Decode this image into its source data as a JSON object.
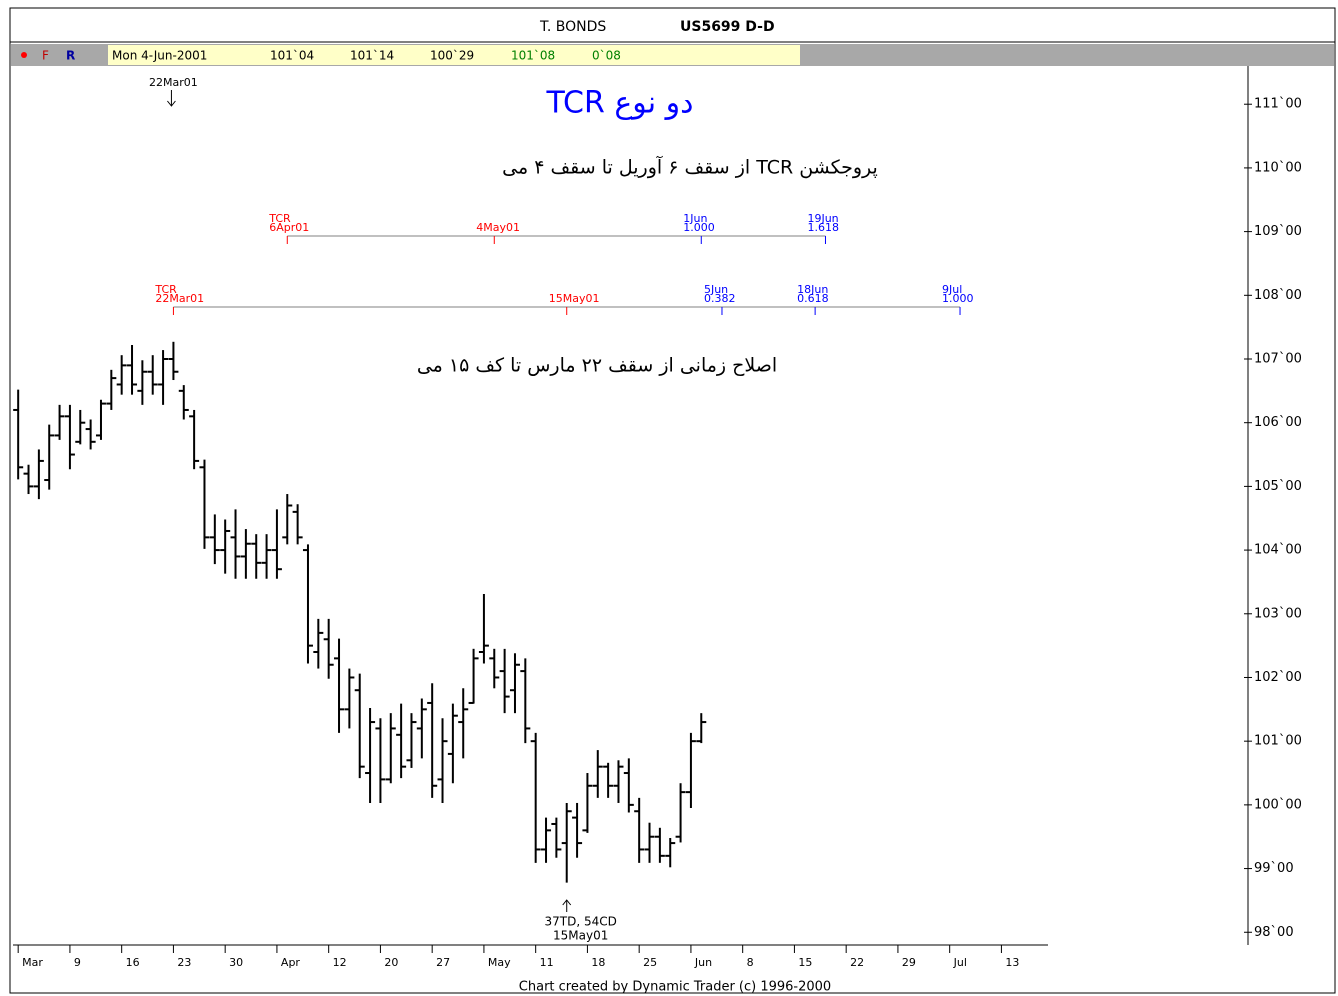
{
  "header": {
    "symbol": "T. BONDS",
    "code": "US5699 D-D"
  },
  "info_bar": {
    "flags": [
      "F",
      "R"
    ],
    "date": "Mon 4-Jun-2001",
    "open": "101`04",
    "high": "101`14",
    "low": "100`29",
    "close": "101`08",
    "change": "0`08"
  },
  "notes": [
    "دو نوع TCR",
    "پروجکشن TCR از سقف ۶ آوریل تا سقف ۴ می",
    "اصلاح زمانی از سقف ۲۲ مارس تا کف ۱۵ می"
  ],
  "footer": "Chart created by Dynamic Trader (c) 1996-2000",
  "chart_data": {
    "type": "ohlc",
    "color": "#000000",
    "x": [
      0,
      1,
      2,
      3,
      4,
      5,
      6,
      7,
      8,
      9,
      10,
      11,
      12,
      13,
      14,
      15,
      16,
      17,
      18,
      19,
      20,
      21,
      22,
      23,
      24,
      25,
      26,
      27,
      28,
      29,
      30,
      31,
      32,
      33,
      34,
      35,
      36,
      37,
      38,
      39,
      40,
      41,
      42,
      43,
      44,
      45,
      46,
      47,
      48,
      49,
      50,
      51,
      52,
      53,
      54,
      55,
      56,
      57,
      58,
      59,
      60,
      61,
      62,
      63,
      64,
      65,
      66
    ],
    "open": [
      106.2,
      105.2,
      105.0,
      105.1,
      105.8,
      106.1,
      105.7,
      105.9,
      105.8,
      106.3,
      106.6,
      106.9,
      106.5,
      106.8,
      106.6,
      107.0,
      106.5,
      106.1,
      105.3,
      104.2,
      104.0,
      104.2,
      103.9,
      104.1,
      103.8,
      104.0,
      104.2,
      104.6,
      104.0,
      102.4,
      102.6,
      102.3,
      101.5,
      101.8,
      100.5,
      101.2,
      100.4,
      101.1,
      100.7,
      101.2,
      101.6,
      100.4,
      100.8,
      101.3,
      101.6,
      102.4,
      102.3,
      102.1,
      101.8,
      102.1,
      101.0,
      99.3,
      99.7,
      99.4,
      99.8,
      99.6,
      100.3,
      100.6,
      100.3,
      100.5,
      99.9,
      99.3,
      99.5,
      99.2,
      99.5,
      100.2,
      101.0
    ],
    "high": [
      106.52,
      105.34,
      105.58,
      105.97,
      106.28,
      106.28,
      106.2,
      106.05,
      106.36,
      106.83,
      107.06,
      107.22,
      106.98,
      107.06,
      107.14,
      107.27,
      106.59,
      106.2,
      105.42,
      104.56,
      104.48,
      104.64,
      104.33,
      104.25,
      104.25,
      104.64,
      104.88,
      104.72,
      104.09,
      102.92,
      102.92,
      102.61,
      102.14,
      102.06,
      101.52,
      101.36,
      101.44,
      101.59,
      101.44,
      101.67,
      101.91,
      101.36,
      101.59,
      101.83,
      102.45,
      103.31,
      102.45,
      102.45,
      102.38,
      102.3,
      101.13,
      99.8,
      99.8,
      100.03,
      100.03,
      100.5,
      100.86,
      100.66,
      100.7,
      100.73,
      100.11,
      99.72,
      99.64,
      99.48,
      100.34,
      101.13,
      101.44
    ],
    "low": [
      105.11,
      104.88,
      104.8,
      104.95,
      105.73,
      105.27,
      105.66,
      105.58,
      105.73,
      106.2,
      106.44,
      106.44,
      106.28,
      106.44,
      106.28,
      106.67,
      106.05,
      105.27,
      104.02,
      103.78,
      103.63,
      103.55,
      103.55,
      103.55,
      103.55,
      103.55,
      104.09,
      104.09,
      102.22,
      102.14,
      101.98,
      101.13,
      101.2,
      100.42,
      100.03,
      100.03,
      100.34,
      100.42,
      100.58,
      100.73,
      100.11,
      100.03,
      100.34,
      100.73,
      101.59,
      102.22,
      101.83,
      101.44,
      101.44,
      100.97,
      99.09,
      99.09,
      99.17,
      98.78,
      99.17,
      99.56,
      100.11,
      100.11,
      100.03,
      99.88,
      99.09,
      99.09,
      99.09,
      99.02,
      99.41,
      99.95,
      100.97
    ],
    "close": [
      105.3,
      105.0,
      105.4,
      105.8,
      106.1,
      105.5,
      106.0,
      105.7,
      106.3,
      106.7,
      106.9,
      106.6,
      106.8,
      106.6,
      107.0,
      106.8,
      106.2,
      105.4,
      104.2,
      104.0,
      104.3,
      103.9,
      104.1,
      103.8,
      104.0,
      103.7,
      104.7,
      104.2,
      102.5,
      102.7,
      102.2,
      101.5,
      102.0,
      100.6,
      101.3,
      100.4,
      101.2,
      100.6,
      101.3,
      101.5,
      100.3,
      101.0,
      101.4,
      101.5,
      102.3,
      102.5,
      102.0,
      101.7,
      102.2,
      101.2,
      99.3,
      99.6,
      99.3,
      99.9,
      99.4,
      100.3,
      100.6,
      100.3,
      100.6,
      100.0,
      99.3,
      99.5,
      99.2,
      99.4,
      100.2,
      101.0,
      101.3
    ],
    "xlim": [
      -0.5,
      99.5
    ],
    "xticks": [
      {
        "value": 0,
        "label": "Mar"
      },
      {
        "value": 5,
        "label": "9"
      },
      {
        "value": 10,
        "label": "16"
      },
      {
        "value": 15,
        "label": "23"
      },
      {
        "value": 20,
        "label": "30"
      },
      {
        "value": 25,
        "label": "Apr"
      },
      {
        "value": 30,
        "label": "12"
      },
      {
        "value": 35,
        "label": "20"
      },
      {
        "value": 40,
        "label": "27"
      },
      {
        "value": 45,
        "label": "May"
      },
      {
        "value": 50,
        "label": "11"
      },
      {
        "value": 55,
        "label": "18"
      },
      {
        "value": 60,
        "label": "25"
      },
      {
        "value": 65,
        "label": "Jun"
      },
      {
        "value": 70,
        "label": "8"
      },
      {
        "value": 75,
        "label": "15"
      },
      {
        "value": 80,
        "label": "22"
      },
      {
        "value": 85,
        "label": "29"
      },
      {
        "value": 90,
        "label": "Jul"
      },
      {
        "value": 95,
        "label": "13"
      }
    ],
    "ylim": [
      97.8,
      111.6
    ],
    "yticks": [
      {
        "value": 98,
        "label": "98`00"
      },
      {
        "value": 99,
        "label": "99`00"
      },
      {
        "value": 100,
        "label": "100`00"
      },
      {
        "value": 101,
        "label": "101`00"
      },
      {
        "value": 102,
        "label": "102`00"
      },
      {
        "value": 103,
        "label": "103`00"
      },
      {
        "value": 104,
        "label": "104`00"
      },
      {
        "value": 105,
        "label": "105`00"
      },
      {
        "value": 106,
        "label": "106`00"
      },
      {
        "value": 107,
        "label": "107`00"
      },
      {
        "value": 108,
        "label": "108`00"
      },
      {
        "value": 109,
        "label": "109`00"
      },
      {
        "value": 110,
        "label": "110`00"
      },
      {
        "value": 111,
        "label": "111`00"
      }
    ],
    "annotations": [
      {
        "x": 15,
        "lines": [
          "22Mar01"
        ],
        "position": "top"
      },
      {
        "x": 53,
        "lines": [
          "37TD, 54CD",
          "15May01"
        ],
        "position": "bottom"
      }
    ],
    "tcr_projections": [
      {
        "markers": [
          {
            "x": 26,
            "labels": [
              "TCR",
              "6Apr01"
            ],
            "color": "#ff0000"
          },
          {
            "x": 46,
            "labels": [
              "4May01"
            ],
            "color": "#ff0000"
          },
          {
            "x": 66,
            "labels": [
              "1Jun",
              "1.000"
            ],
            "color": "#0000ff"
          },
          {
            "x": 78,
            "labels": [
              "19Jun",
              "1.618"
            ],
            "color": "#0000ff"
          }
        ]
      },
      {
        "markers": [
          {
            "x": 15,
            "labels": [
              "TCR",
              "22Mar01"
            ],
            "color": "#ff0000"
          },
          {
            "x": 53,
            "labels": [
              "15May01"
            ],
            "color": "#ff0000"
          },
          {
            "x": 68,
            "labels": [
              "5Jun",
              "0.382"
            ],
            "color": "#0000ff"
          },
          {
            "x": 77,
            "labels": [
              "18Jun",
              "0.618"
            ],
            "color": "#0000ff"
          },
          {
            "x": 91,
            "labels": [
              "9Jul",
              "1.000"
            ],
            "color": "#0000ff"
          }
        ]
      }
    ]
  }
}
